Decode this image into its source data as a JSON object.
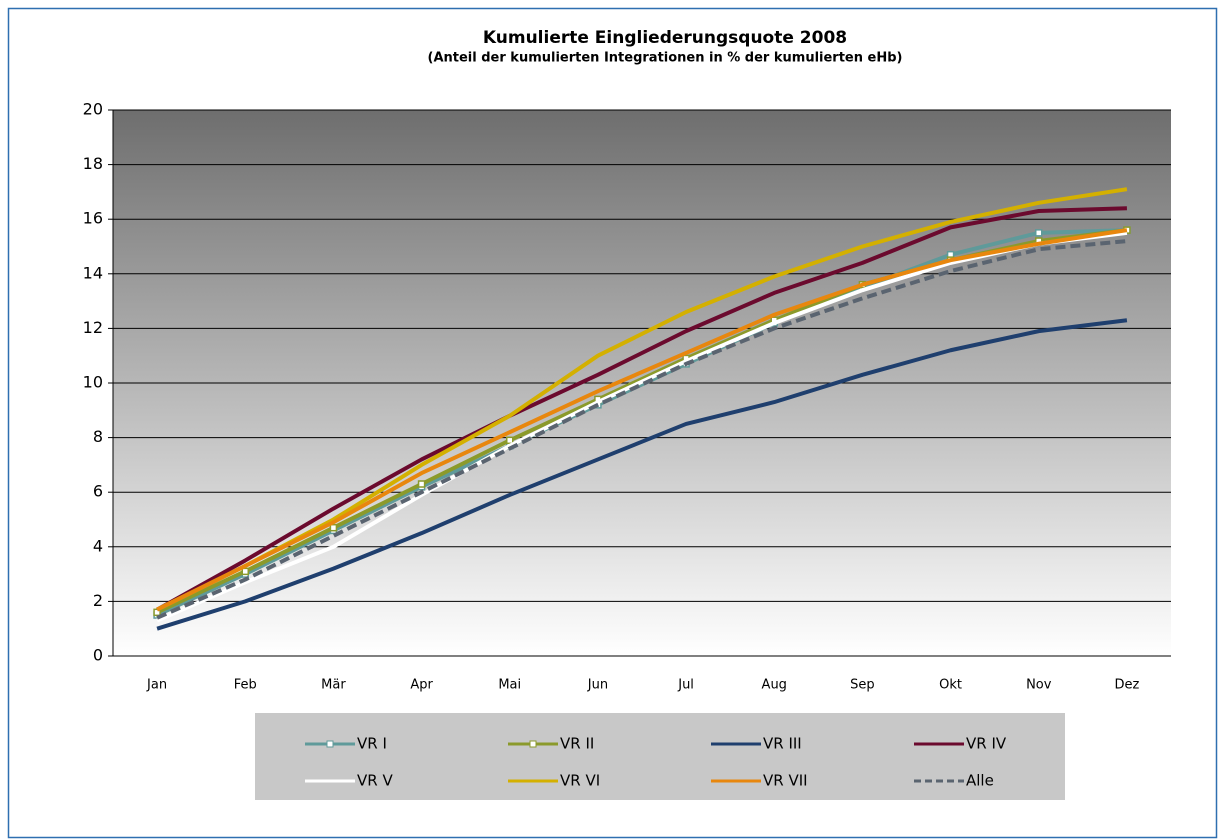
{
  "chart_data": {
    "type": "line",
    "title": "Kumulierte Eingliederungsquote 2008",
    "subtitle": "(Anteil der kumulierten Integrationen in % der kumulierten eHb)",
    "categories": [
      "Jan",
      "Feb",
      "Mär",
      "Apr",
      "Mai",
      "Jun",
      "Jul",
      "Aug",
      "Sep",
      "Okt",
      "Nov",
      "Dez"
    ],
    "ylim": [
      0,
      20
    ],
    "yticks": [
      0,
      2,
      4,
      6,
      8,
      10,
      12,
      14,
      16,
      18,
      20
    ],
    "grid": true,
    "legend": "bottom",
    "series": [
      {
        "name": "VR I",
        "color": "#5f9a9a",
        "markers": true,
        "values": [
          1.5,
          3.0,
          4.6,
          6.2,
          7.7,
          9.2,
          10.7,
          12.2,
          13.5,
          14.7,
          15.5,
          15.6
        ]
      },
      {
        "name": "VR II",
        "color": "#8b9a2b",
        "markers": true,
        "values": [
          1.6,
          3.1,
          4.7,
          6.3,
          7.9,
          9.4,
          10.9,
          12.3,
          13.6,
          14.5,
          15.2,
          15.6
        ]
      },
      {
        "name": "VR III",
        "color": "#1f3f6e",
        "values": [
          1.0,
          2.0,
          3.2,
          4.5,
          5.9,
          7.2,
          8.5,
          9.3,
          10.3,
          11.2,
          11.9,
          12.3
        ]
      },
      {
        "name": "VR IV",
        "color": "#6b0a2e",
        "values": [
          1.7,
          3.5,
          5.4,
          7.2,
          8.8,
          10.3,
          11.9,
          13.3,
          14.4,
          15.7,
          16.3,
          16.4
        ]
      },
      {
        "name": "VR V",
        "color": "#ffffff",
        "values": [
          1.3,
          2.7,
          4.0,
          5.9,
          7.7,
          9.3,
          10.8,
          12.2,
          13.4,
          14.4,
          15.1,
          15.5
        ]
      },
      {
        "name": "VR VI",
        "color": "#d4b000",
        "values": [
          1.7,
          3.3,
          5.0,
          7.0,
          8.8,
          11.0,
          12.6,
          13.9,
          15.0,
          15.9,
          16.6,
          17.1
        ]
      },
      {
        "name": "VR VII",
        "color": "#e8870e",
        "values": [
          1.7,
          3.3,
          4.9,
          6.7,
          8.2,
          9.7,
          11.1,
          12.5,
          13.6,
          14.5,
          15.1,
          15.6
        ]
      },
      {
        "name": "Alle",
        "color": "#5a6470",
        "dashed": true,
        "values": [
          1.4,
          2.8,
          4.4,
          6.0,
          7.6,
          9.2,
          10.7,
          12.0,
          13.1,
          14.1,
          14.9,
          15.2
        ]
      }
    ]
  }
}
